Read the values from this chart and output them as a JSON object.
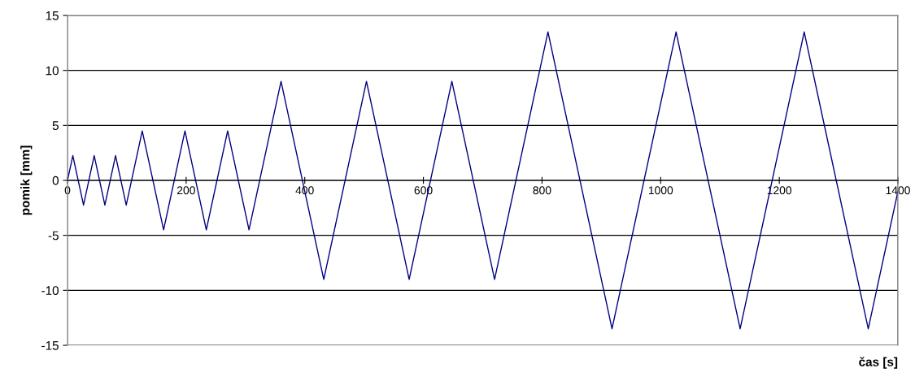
{
  "chart_data": {
    "type": "line",
    "xlabel": "čas [s]",
    "ylabel": "pomik [mm]",
    "x": [
      0,
      9,
      27,
      45,
      63,
      81,
      99,
      126,
      162,
      198,
      234,
      270,
      306,
      360,
      432,
      504,
      576,
      648,
      720,
      810,
      918,
      1026,
      1134,
      1242,
      1350,
      1400
    ],
    "series": [
      {
        "color": "#000080",
        "values": [
          0,
          2.25,
          -2.25,
          2.25,
          -2.25,
          2.25,
          -2.25,
          4.5,
          -4.5,
          4.5,
          -4.5,
          4.5,
          -4.5,
          9,
          -9,
          9,
          -9,
          9,
          -9,
          13.5,
          -13.5,
          13.5,
          -13.5,
          13.5,
          -13.5,
          -1
        ]
      }
    ],
    "xlim": [
      0,
      1400
    ],
    "xticks": [
      0,
      200,
      400,
      600,
      800,
      1000,
      1200,
      1400
    ],
    "ylim": [
      -15,
      15
    ],
    "yticks": [
      -15,
      -10,
      -5,
      0,
      5,
      10,
      15
    ],
    "grid": "y",
    "legend": false,
    "marker": "none",
    "line_style": "solid"
  }
}
